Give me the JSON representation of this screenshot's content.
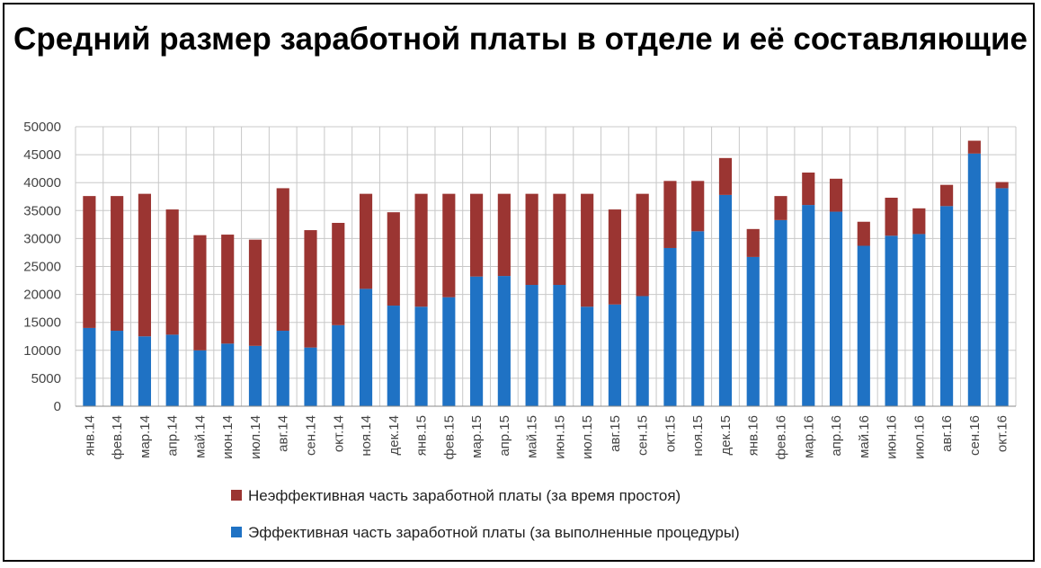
{
  "chart_data": {
    "type": "bar",
    "stacked": true,
    "title": "Средний размер заработной платы в отделе и её составляющие",
    "ylim": [
      0,
      50000
    ],
    "yticks": [
      0,
      5000,
      10000,
      15000,
      20000,
      25000,
      30000,
      35000,
      40000,
      45000,
      50000
    ],
    "grid": true,
    "legend_position": "bottom",
    "categories": [
      "янв.14",
      "фев.14",
      "мар.14",
      "апр.14",
      "май.14",
      "июн.14",
      "июл.14",
      "авг.14",
      "сен.14",
      "окт.14",
      "ноя.14",
      "дек.14",
      "янв.15",
      "фев.15",
      "мар.15",
      "апр.15",
      "май.15",
      "июн.15",
      "июл.15",
      "авг.15",
      "сен.15",
      "окт.15",
      "ноя.15",
      "дек.15",
      "янв.16",
      "фев.16",
      "мар.16",
      "апр.16",
      "май.16",
      "июн.16",
      "июл.16",
      "авг.16",
      "сен.16",
      "окт.16"
    ],
    "series": [
      {
        "name": "Эффективная часть заработной платы (за выполненные процедуры)",
        "color": "#1f72c4",
        "values": [
          14000,
          13500,
          12500,
          12800,
          10000,
          11200,
          10800,
          13500,
          10500,
          14500,
          21000,
          18000,
          17800,
          19500,
          23200,
          23300,
          21700,
          21700,
          17800,
          18200,
          19700,
          28300,
          31300,
          37800,
          26700,
          33300,
          36000,
          34800,
          28700,
          30500,
          30800,
          35800,
          45200,
          39000
        ]
      },
      {
        "name": "Неэффективная часть заработной платы (за время простоя)",
        "color": "#9b3532",
        "values": [
          23600,
          24100,
          25500,
          22400,
          20600,
          19500,
          19000,
          25500,
          21000,
          18300,
          17000,
          16700,
          20200,
          18500,
          14800,
          14700,
          16300,
          16300,
          20200,
          17000,
          18300,
          12000,
          9000,
          6600,
          5000,
          4300,
          5800,
          5900,
          4300,
          6800,
          4600,
          3800,
          2300,
          1100
        ]
      }
    ]
  }
}
